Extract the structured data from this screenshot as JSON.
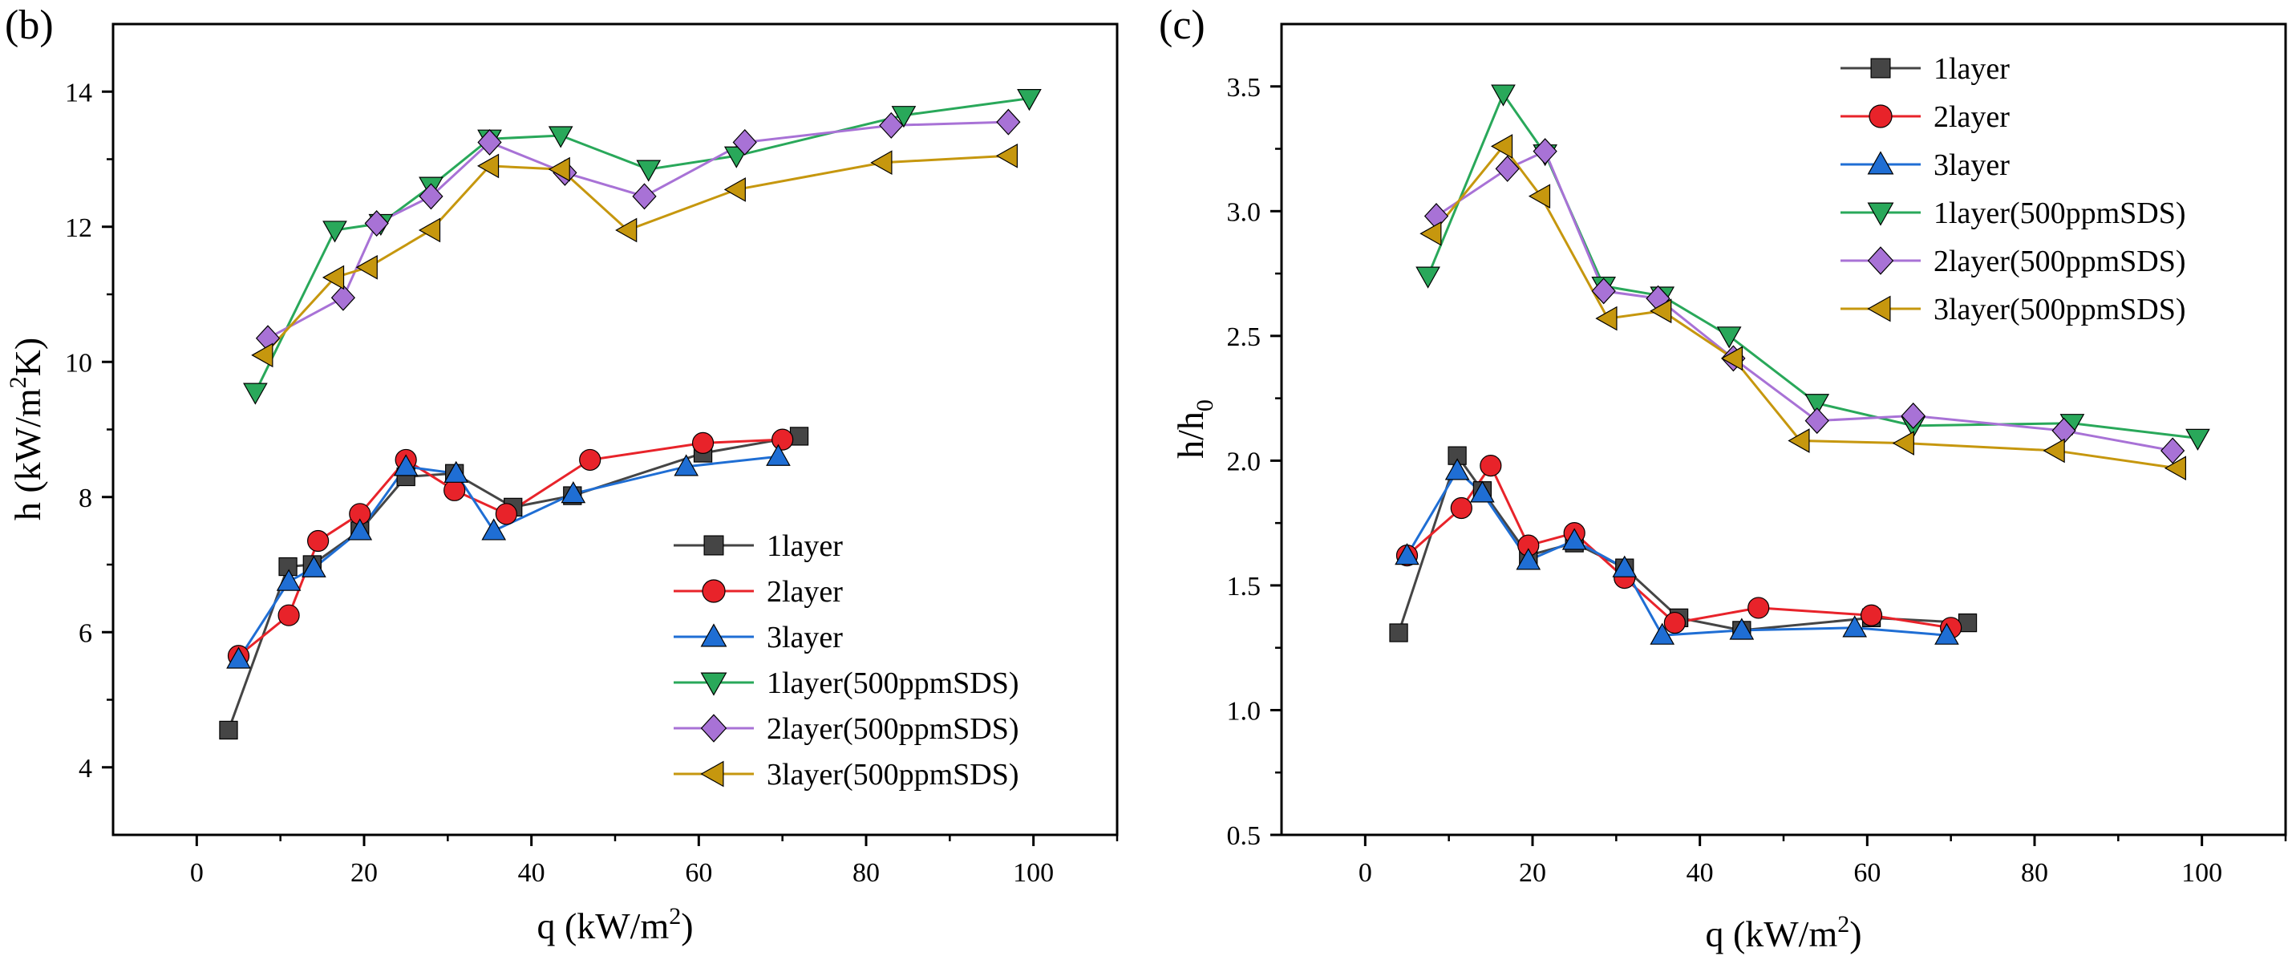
{
  "figure": {
    "panel_b_label": "(b)",
    "panel_c_label": "(c)"
  },
  "chart_data": [
    {
      "type": "line",
      "id": "b",
      "title": "",
      "xlabel_text": "q (kW/m",
      "xlabel_sup": "2",
      "xlabel_tail": ")",
      "ylabel_text": "h (kW/m",
      "ylabel_sup": "2",
      "ylabel_tail": "K)",
      "xlim": [
        -10,
        110
      ],
      "ylim": [
        3,
        15
      ],
      "xticks": [
        0,
        20,
        40,
        60,
        80,
        100
      ],
      "yticks": [
        4,
        6,
        8,
        10,
        12,
        14
      ],
      "xtick_labels": [
        "0",
        "20",
        "40",
        "60",
        "80",
        "100"
      ],
      "ytick_labels": [
        "4",
        "6",
        "8",
        "10",
        "12",
        "14"
      ],
      "grid": false,
      "legend_position": "bottom-right",
      "series": [
        {
          "name": "1layer",
          "marker": "square",
          "color": "#454545",
          "x": [
            3.8,
            10.9,
            13.8,
            19.5,
            25.0,
            30.8,
            37.8,
            44.9,
            60.5,
            72.0
          ],
          "y": [
            4.55,
            6.97,
            7.0,
            7.5,
            8.3,
            8.35,
            7.85,
            8.02,
            8.65,
            8.9
          ]
        },
        {
          "name": "2layer",
          "marker": "circle",
          "color": "#e8232a",
          "x": [
            5.0,
            11.0,
            14.5,
            19.5,
            25.0,
            30.8,
            37.0,
            47.0,
            60.5,
            70.0
          ],
          "y": [
            5.65,
            6.25,
            7.35,
            7.75,
            8.55,
            8.1,
            7.75,
            8.55,
            8.8,
            8.85
          ]
        },
        {
          "name": "3layer",
          "marker": "triangle-up",
          "color": "#1f6ed4",
          "x": [
            5.0,
            11.0,
            14.0,
            19.5,
            25.0,
            31.0,
            35.5,
            45.0,
            58.5,
            69.5
          ],
          "y": [
            5.6,
            6.75,
            6.95,
            7.5,
            8.45,
            8.35,
            7.5,
            8.05,
            8.45,
            8.6
          ]
        },
        {
          "name": "1layer(500ppmSDS)",
          "marker": "triangle-down",
          "color": "#29a85a",
          "x": [
            7.0,
            16.5,
            22.0,
            28.0,
            35.0,
            43.5,
            54.0,
            64.5,
            84.5,
            99.5
          ],
          "y": [
            9.55,
            11.95,
            12.05,
            12.6,
            13.3,
            13.35,
            12.85,
            13.05,
            13.65,
            13.9
          ]
        },
        {
          "name": "2layer(500ppmSDS)",
          "marker": "diamond",
          "color": "#a872d6",
          "x": [
            8.5,
            17.5,
            21.5,
            28.0,
            35.0,
            44.0,
            53.5,
            65.5,
            83.0,
            97.0
          ],
          "y": [
            10.35,
            10.95,
            12.05,
            12.45,
            13.25,
            12.8,
            12.45,
            13.25,
            13.5,
            13.55
          ]
        },
        {
          "name": "3layer(500ppmSDS)",
          "marker": "triangle-left",
          "color": "#c6970e",
          "x": [
            8.0,
            16.5,
            20.5,
            28.0,
            35.0,
            43.5,
            51.5,
            64.5,
            82.0,
            97.0
          ],
          "y": [
            10.1,
            11.25,
            11.4,
            11.95,
            12.9,
            12.85,
            11.95,
            12.55,
            12.95,
            13.05
          ]
        }
      ]
    },
    {
      "type": "line",
      "id": "c",
      "title": "",
      "xlabel_text": "q (kW/m",
      "xlabel_sup": "2",
      "xlabel_tail": ")",
      "ylabel_text": "h/h",
      "ylabel_sub": "0",
      "xlim": [
        -10,
        110
      ],
      "ylim": [
        0.5,
        3.75
      ],
      "xticks": [
        0,
        20,
        40,
        60,
        80,
        100
      ],
      "yticks": [
        0.5,
        1.0,
        1.5,
        2.0,
        2.5,
        3.0,
        3.5
      ],
      "xtick_labels": [
        "0",
        "20",
        "40",
        "60",
        "80",
        "100"
      ],
      "ytick_labels": [
        "0.5",
        "1.0",
        "1.5",
        "2.0",
        "2.5",
        "3.0",
        "3.5"
      ],
      "grid": false,
      "legend_position": "top-right",
      "series": [
        {
          "name": "1layer",
          "marker": "square",
          "color": "#454545",
          "x": [
            4.0,
            11.0,
            14.0,
            19.5,
            25.0,
            31.0,
            37.5,
            45.0,
            60.5,
            72.0
          ],
          "y": [
            1.31,
            2.02,
            1.88,
            1.62,
            1.67,
            1.57,
            1.37,
            1.32,
            1.37,
            1.35
          ]
        },
        {
          "name": "2layer",
          "marker": "circle",
          "color": "#e8232a",
          "x": [
            5.0,
            11.5,
            15.0,
            19.5,
            25.0,
            31.0,
            37.0,
            47.0,
            60.5,
            70.0
          ],
          "y": [
            1.62,
            1.81,
            1.98,
            1.66,
            1.71,
            1.53,
            1.35,
            1.41,
            1.38,
            1.33
          ]
        },
        {
          "name": "3layer",
          "marker": "triangle-up",
          "color": "#1f6ed4",
          "x": [
            5.0,
            11.0,
            14.0,
            19.5,
            25.0,
            31.0,
            35.5,
            45.0,
            58.5,
            69.5
          ],
          "y": [
            1.62,
            1.96,
            1.87,
            1.6,
            1.68,
            1.57,
            1.3,
            1.32,
            1.33,
            1.3
          ]
        },
        {
          "name": "1layer(500ppmSDS)",
          "marker": "triangle-down",
          "color": "#29a85a",
          "x": [
            7.5,
            16.5,
            21.5,
            28.5,
            35.5,
            43.5,
            54.0,
            65.5,
            84.5,
            99.5
          ],
          "y": [
            2.74,
            3.47,
            3.23,
            2.7,
            2.66,
            2.5,
            2.23,
            2.14,
            2.15,
            2.09
          ]
        },
        {
          "name": "2layer(500ppmSDS)",
          "marker": "diamond",
          "color": "#a872d6",
          "x": [
            8.5,
            17.0,
            21.5,
            28.5,
            35.0,
            44.0,
            54.0,
            65.5,
            83.5,
            96.5
          ],
          "y": [
            2.98,
            3.17,
            3.24,
            2.68,
            2.65,
            2.41,
            2.16,
            2.18,
            2.12,
            2.04
          ]
        },
        {
          "name": "3layer(500ppmSDS)",
          "marker": "triangle-left",
          "color": "#c6970e",
          "x": [
            8.0,
            16.5,
            21.0,
            29.0,
            35.5,
            44.0,
            52.0,
            64.5,
            82.5,
            97.0
          ],
          "y": [
            2.91,
            3.26,
            3.06,
            2.57,
            2.6,
            2.41,
            2.08,
            2.07,
            2.04,
            1.97
          ]
        }
      ]
    }
  ]
}
